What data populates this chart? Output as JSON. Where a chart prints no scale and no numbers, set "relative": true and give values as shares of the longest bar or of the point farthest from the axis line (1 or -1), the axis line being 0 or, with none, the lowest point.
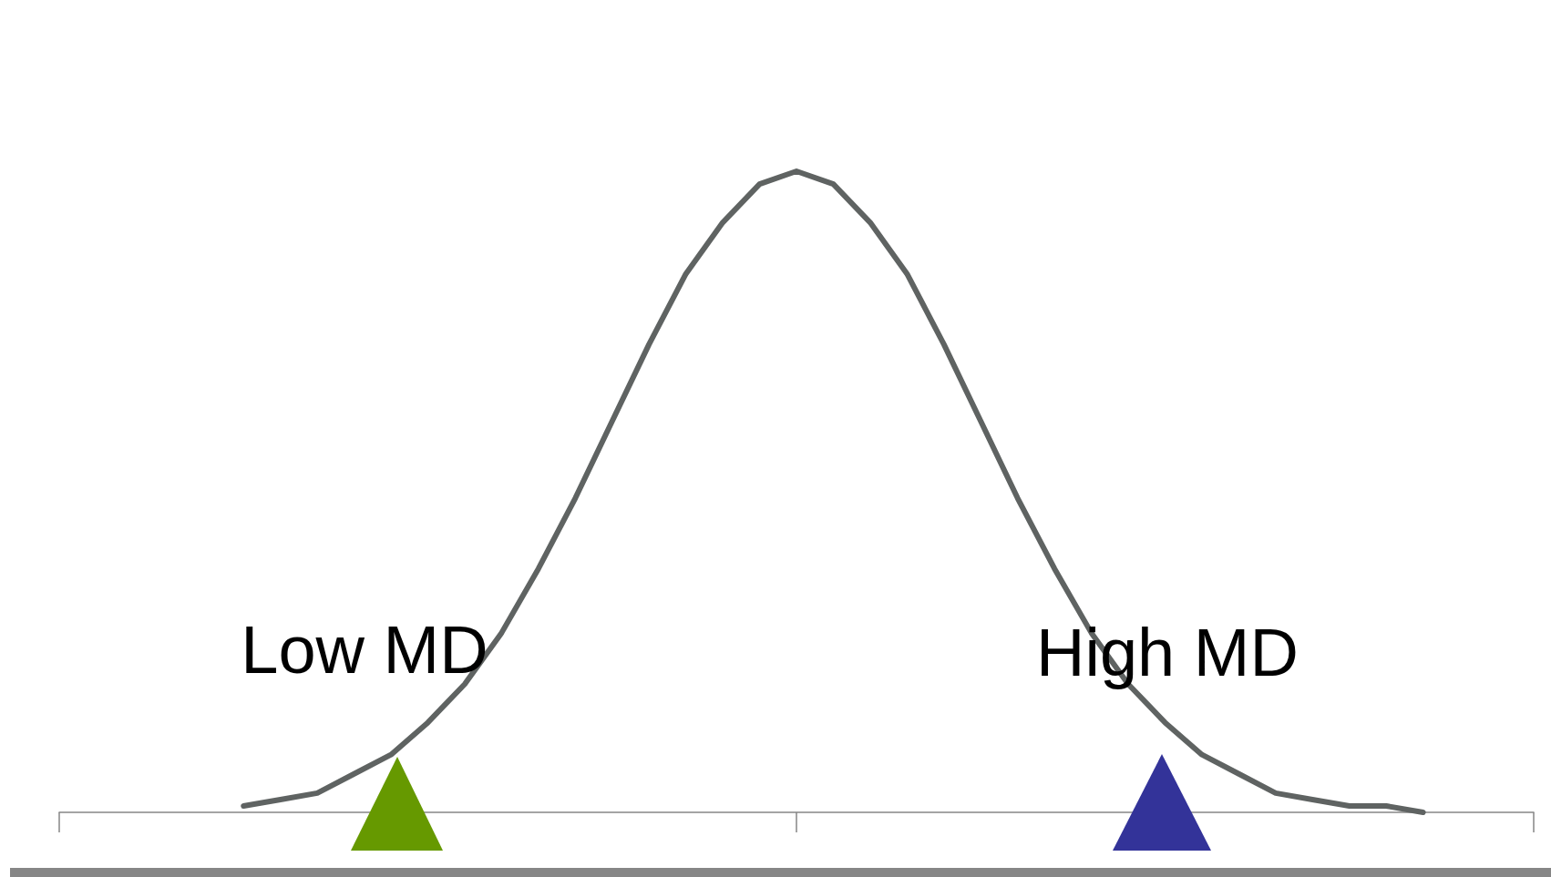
{
  "chart_data": {
    "type": "line",
    "relative": true,
    "categories": [
      null,
      null,
      null,
      null,
      null,
      null,
      null,
      null,
      null,
      null,
      null,
      null,
      null,
      null,
      null,
      null,
      null,
      null,
      null,
      null,
      null,
      null,
      null,
      null,
      null,
      null,
      null,
      null,
      null,
      null,
      null,
      null,
      null,
      null,
      null,
      null,
      null,
      null,
      null,
      null,
      null
    ],
    "series": [
      {
        "color": "#5f6362",
        "values": [
          null,
          null,
          null,
          null,
          null,
          0.01,
          0.02,
          0.03,
          0.06,
          0.09,
          0.14,
          0.2,
          0.28,
          0.38,
          0.49,
          0.61,
          0.73,
          0.84,
          0.92,
          0.98,
          1,
          0.98,
          0.92,
          0.84,
          0.73,
          0.61,
          0.49,
          0.38,
          0.28,
          0.2,
          0.14,
          0.09,
          0.06,
          0.03,
          0.02,
          0.01,
          0.01,
          0,
          null,
          null,
          null
        ]
      }
    ],
    "marker": "none",
    "line_style": "solid",
    "grid": false,
    "annotations": [
      "Low MD",
      "High MD"
    ]
  }
}
